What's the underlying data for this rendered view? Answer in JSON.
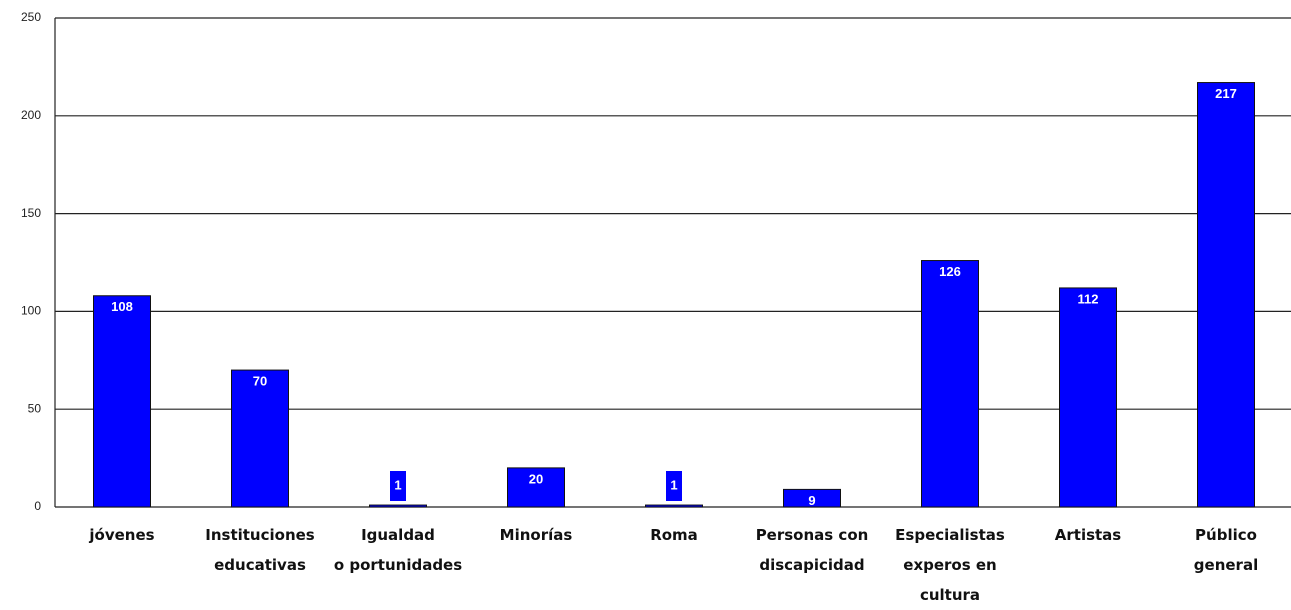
{
  "chart_data": {
    "type": "bar",
    "categories": [
      "jóvenes",
      "Instituciones\neducativas",
      "Igualdad\no portunidades",
      "Minorías",
      "Roma",
      "Personas con\ndiscapicidad",
      "Especialistas\nexperos en cultura",
      "Artistas",
      "Público\ngeneral"
    ],
    "values": [
      108,
      70,
      1,
      20,
      1,
      9,
      126,
      112,
      217
    ],
    "color": "#0000ff",
    "ylim": [
      0,
      250
    ],
    "yticks": [
      0,
      50,
      100,
      150,
      200,
      250
    ],
    "grid": true
  }
}
